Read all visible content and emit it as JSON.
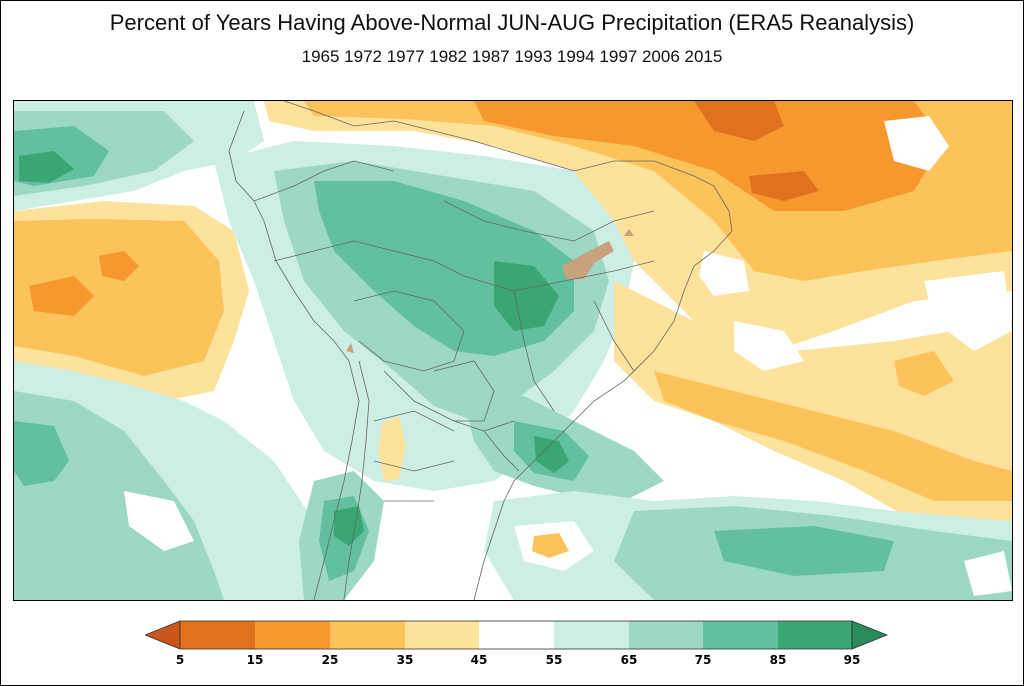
{
  "title": "Percent of Years Having Above-Normal JUN-AUG Precipitation (ERA5 Reanalysis)",
  "subtitle": "1965 1972 1977 1982 1987 1993 1994 1997 2006 2015",
  "colorbar": {
    "ticks": [
      "5",
      "15",
      "25",
      "35",
      "45",
      "55",
      "65",
      "75",
      "85",
      "95"
    ],
    "colors": [
      "#e0721f",
      "#f7982f",
      "#fbc35a",
      "#fde29c",
      "#ffffff",
      "#cceee5",
      "#9dd8c6",
      "#62c09e",
      "#3aa673"
    ],
    "under_color": "#c8551a",
    "over_color": "#2a8a5a"
  },
  "map_colors": {
    "dark_orange": "#e0721f",
    "orange": "#f7982f",
    "light_orange": "#fbc35a",
    "pale_orange": "#fde29c",
    "white": "#ffffff",
    "pale_green": "#cceee5",
    "light_green": "#9dd8c6",
    "green": "#62c09e",
    "dark_green": "#3aa673",
    "masked_land": "#c8a27c",
    "borders": "#666666"
  }
}
